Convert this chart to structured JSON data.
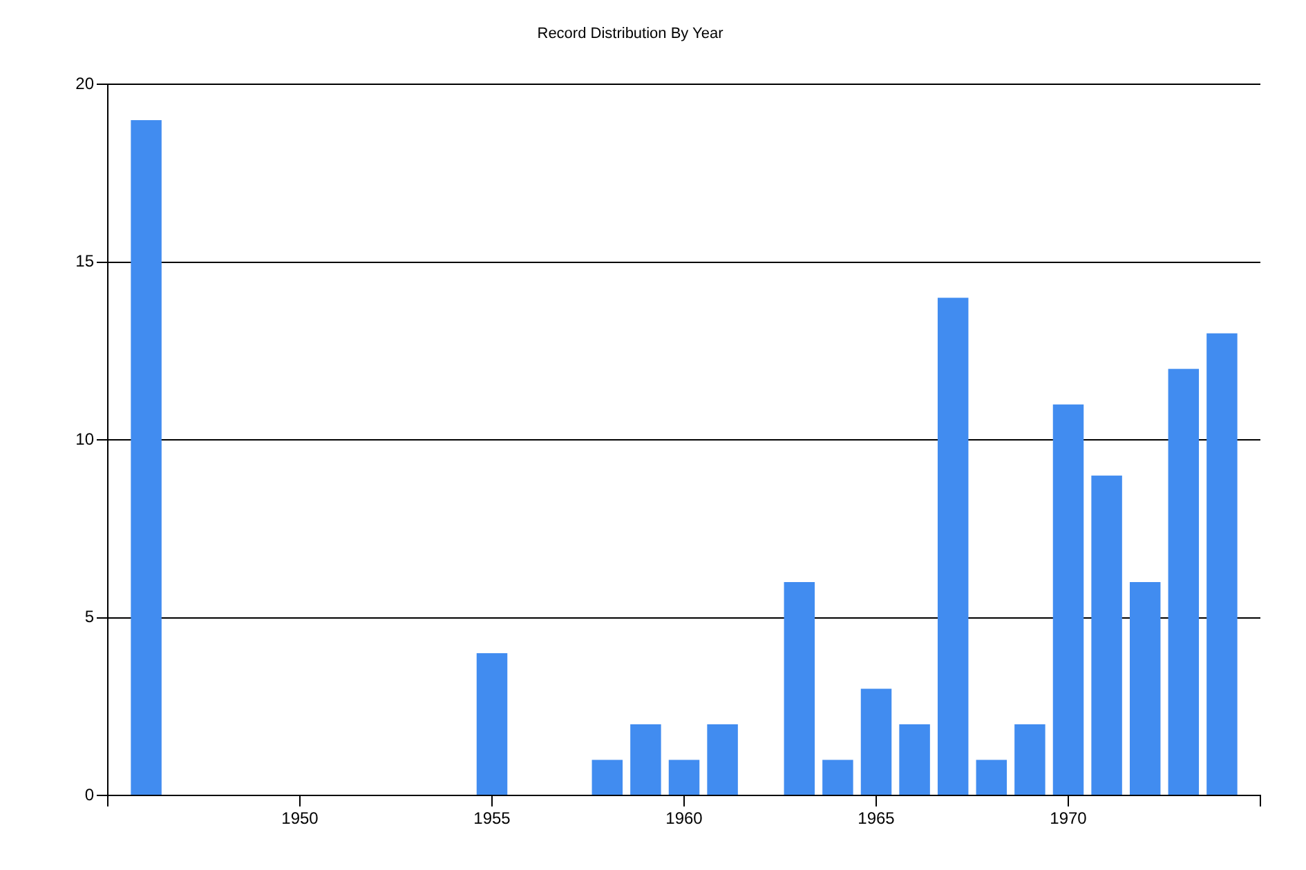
{
  "chart_data": {
    "type": "bar",
    "title": "Record Distribution By Year",
    "x": [
      1946,
      1955,
      1958,
      1959,
      1960,
      1961,
      1963,
      1964,
      1965,
      1966,
      1967,
      1968,
      1969,
      1970,
      1971,
      1972,
      1973,
      1974
    ],
    "values": [
      19,
      4,
      1,
      2,
      1,
      2,
      6,
      1,
      3,
      2,
      14,
      1,
      2,
      11,
      9,
      6,
      12,
      13
    ],
    "color": "#418cf0",
    "xlim": [
      1945,
      1975
    ],
    "xticks": [
      {
        "value": 1945,
        "label": null
      },
      1950,
      1955,
      1960,
      1965,
      1970,
      {
        "value": 1975,
        "label": null
      }
    ],
    "ylim": [
      0,
      20
    ],
    "yticks": [
      0,
      5,
      10,
      15,
      20
    ],
    "grid": "y",
    "legend": false
  }
}
